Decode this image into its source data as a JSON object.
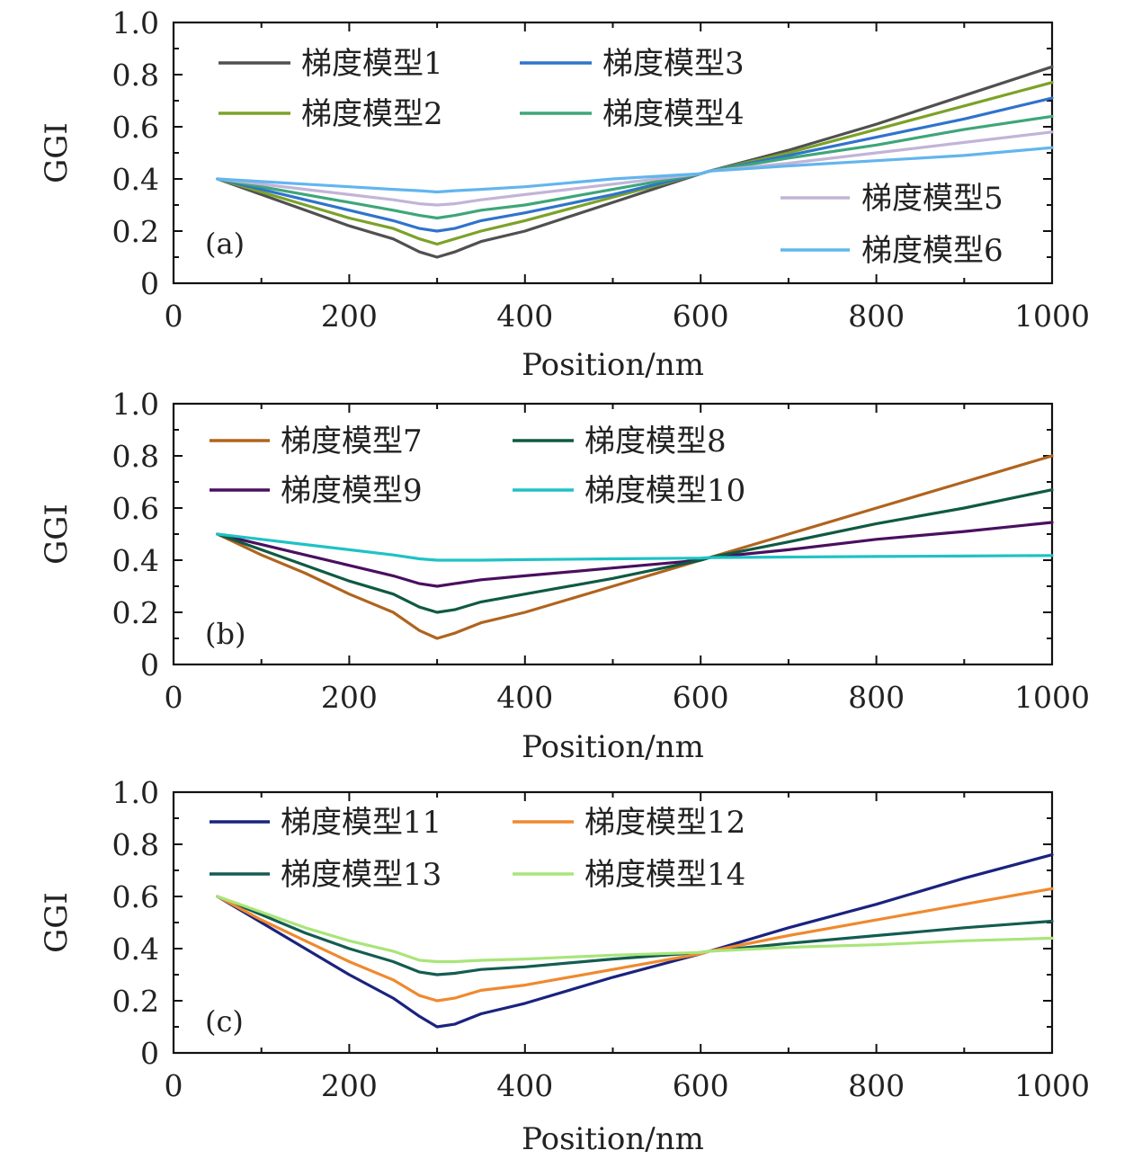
{
  "chart_data": [
    {
      "type": "line",
      "panel_label": "(a)",
      "xlabel": "Position/nm",
      "ylabel": "GGI",
      "xlim": [
        0,
        1000
      ],
      "ylim": [
        0,
        1.0
      ],
      "xticks": [
        0,
        200,
        400,
        600,
        800,
        1000
      ],
      "xtick_labels": [
        "0",
        "200",
        "400",
        "600",
        "800",
        "1000"
      ],
      "yticks": [
        0,
        0.2,
        0.4,
        0.6,
        0.8,
        1.0
      ],
      "ytick_labels": [
        "0",
        "0.2",
        "0.4",
        "0.6",
        "0.8",
        "1.0"
      ],
      "series": [
        {
          "name": "梯度模型1",
          "color": "#505050",
          "legend": "col1",
          "x": [
            50,
            100,
            150,
            200,
            250,
            280,
            300,
            320,
            350,
            400,
            500,
            600,
            610,
            700,
            800,
            900,
            1000
          ],
          "y": [
            0.4,
            0.34,
            0.28,
            0.22,
            0.17,
            0.12,
            0.1,
            0.12,
            0.16,
            0.2,
            0.31,
            0.42,
            0.43,
            0.51,
            0.61,
            0.72,
            0.83
          ]
        },
        {
          "name": "梯度模型2",
          "color": "#7ca228",
          "legend": "col1",
          "x": [
            50,
            100,
            150,
            200,
            250,
            280,
            300,
            320,
            350,
            400,
            500,
            600,
            610,
            700,
            800,
            900,
            1000
          ],
          "y": [
            0.4,
            0.35,
            0.3,
            0.25,
            0.21,
            0.17,
            0.15,
            0.17,
            0.2,
            0.24,
            0.33,
            0.42,
            0.43,
            0.5,
            0.59,
            0.68,
            0.77
          ]
        },
        {
          "name": "梯度模型3",
          "color": "#2f73cc",
          "legend": "col2",
          "x": [
            50,
            100,
            150,
            200,
            250,
            280,
            300,
            320,
            350,
            400,
            500,
            600,
            610,
            700,
            800,
            900,
            1000
          ],
          "y": [
            0.4,
            0.36,
            0.32,
            0.28,
            0.24,
            0.21,
            0.2,
            0.21,
            0.24,
            0.27,
            0.34,
            0.42,
            0.43,
            0.49,
            0.56,
            0.63,
            0.71
          ]
        },
        {
          "name": "梯度模型4",
          "color": "#3ea679",
          "legend": "col2",
          "x": [
            50,
            100,
            150,
            200,
            250,
            280,
            300,
            320,
            350,
            400,
            500,
            600,
            610,
            700,
            800,
            900,
            1000
          ],
          "y": [
            0.4,
            0.37,
            0.34,
            0.31,
            0.28,
            0.26,
            0.25,
            0.26,
            0.28,
            0.3,
            0.36,
            0.42,
            0.43,
            0.48,
            0.53,
            0.59,
            0.64
          ]
        },
        {
          "name": "梯度模型5",
          "color": "#c2b4d8",
          "legend": "bottom-right",
          "x": [
            50,
            100,
            150,
            200,
            250,
            280,
            300,
            320,
            350,
            400,
            500,
            600,
            610,
            700,
            800,
            900,
            1000
          ],
          "y": [
            0.4,
            0.38,
            0.36,
            0.34,
            0.32,
            0.305,
            0.3,
            0.305,
            0.32,
            0.34,
            0.38,
            0.42,
            0.43,
            0.46,
            0.5,
            0.54,
            0.58
          ]
        },
        {
          "name": "梯度模型6",
          "color": "#62b5ee",
          "legend": "bottom-right",
          "x": [
            50,
            100,
            150,
            200,
            250,
            280,
            300,
            320,
            350,
            400,
            500,
            600,
            610,
            700,
            800,
            900,
            1000
          ],
          "y": [
            0.4,
            0.39,
            0.38,
            0.37,
            0.36,
            0.355,
            0.35,
            0.355,
            0.36,
            0.37,
            0.4,
            0.42,
            0.43,
            0.45,
            0.47,
            0.49,
            0.52
          ]
        }
      ]
    },
    {
      "type": "line",
      "panel_label": "(b)",
      "xlabel": "Position/nm",
      "ylabel": "GGI",
      "xlim": [
        0,
        1000
      ],
      "ylim": [
        0,
        1.0
      ],
      "xticks": [
        0,
        200,
        400,
        600,
        800,
        1000
      ],
      "xtick_labels": [
        "0",
        "200",
        "400",
        "600",
        "800",
        "1000"
      ],
      "yticks": [
        0,
        0.2,
        0.4,
        0.6,
        0.8,
        1.0
      ],
      "ytick_labels": [
        "0",
        "0.2",
        "0.4",
        "0.6",
        "0.8",
        "1.0"
      ],
      "series": [
        {
          "name": "梯度模型7",
          "color": "#b0641e",
          "legend": "col1",
          "x": [
            50,
            100,
            150,
            200,
            250,
            280,
            300,
            320,
            350,
            400,
            500,
            600,
            610,
            700,
            800,
            900,
            1000
          ],
          "y": [
            0.5,
            0.42,
            0.35,
            0.27,
            0.2,
            0.13,
            0.1,
            0.12,
            0.16,
            0.2,
            0.3,
            0.4,
            0.41,
            0.5,
            0.6,
            0.7,
            0.8
          ]
        },
        {
          "name": "梯度模型9",
          "color": "#4a0f60",
          "legend": "col1",
          "x": [
            50,
            100,
            150,
            200,
            250,
            280,
            300,
            320,
            350,
            400,
            500,
            600,
            610,
            700,
            800,
            900,
            1000
          ],
          "y": [
            0.5,
            0.46,
            0.42,
            0.38,
            0.34,
            0.31,
            0.3,
            0.31,
            0.325,
            0.34,
            0.37,
            0.4,
            0.41,
            0.44,
            0.48,
            0.51,
            0.545
          ]
        },
        {
          "name": "梯度模型8",
          "color": "#0f5a42",
          "legend": "col2",
          "x": [
            50,
            100,
            150,
            200,
            250,
            280,
            300,
            320,
            350,
            400,
            500,
            600,
            610,
            700,
            800,
            900,
            1000
          ],
          "y": [
            0.5,
            0.44,
            0.38,
            0.32,
            0.27,
            0.22,
            0.2,
            0.21,
            0.24,
            0.27,
            0.33,
            0.4,
            0.41,
            0.47,
            0.54,
            0.6,
            0.67
          ]
        },
        {
          "name": "梯度模型10",
          "color": "#1fc2c4",
          "legend": "col2",
          "x": [
            50,
            100,
            150,
            200,
            250,
            280,
            300,
            320,
            350,
            400,
            500,
            600,
            610,
            700,
            800,
            900,
            1000
          ],
          "y": [
            0.5,
            0.48,
            0.46,
            0.44,
            0.42,
            0.405,
            0.4,
            0.4,
            0.4,
            0.402,
            0.405,
            0.408,
            0.41,
            0.412,
            0.414,
            0.416,
            0.418
          ]
        }
      ]
    },
    {
      "type": "line",
      "panel_label": "(c)",
      "xlabel": "Position/nm",
      "ylabel": "GGI",
      "xlim": [
        0,
        1000
      ],
      "ylim": [
        0,
        1.0
      ],
      "xticks": [
        0,
        200,
        400,
        600,
        800,
        1000
      ],
      "xtick_labels": [
        "0",
        "200",
        "400",
        "600",
        "800",
        "1000"
      ],
      "yticks": [
        0,
        0.2,
        0.4,
        0.6,
        0.8,
        1.0
      ],
      "ytick_labels": [
        "0",
        "0.2",
        "0.4",
        "0.6",
        "0.8",
        "1.0"
      ],
      "series": [
        {
          "name": "梯度模型11",
          "color": "#1a237e",
          "legend": "col1",
          "x": [
            50,
            100,
            150,
            200,
            250,
            280,
            300,
            320,
            350,
            400,
            500,
            600,
            610,
            700,
            800,
            900,
            1000
          ],
          "y": [
            0.6,
            0.5,
            0.4,
            0.3,
            0.21,
            0.14,
            0.1,
            0.11,
            0.15,
            0.19,
            0.29,
            0.38,
            0.39,
            0.48,
            0.57,
            0.67,
            0.76
          ]
        },
        {
          "name": "梯度模型13",
          "color": "#145c50",
          "legend": "col1",
          "x": [
            50,
            100,
            150,
            200,
            250,
            280,
            300,
            320,
            350,
            400,
            500,
            600,
            610,
            700,
            800,
            900,
            1000
          ],
          "y": [
            0.6,
            0.53,
            0.46,
            0.4,
            0.35,
            0.31,
            0.3,
            0.305,
            0.32,
            0.33,
            0.36,
            0.385,
            0.39,
            0.42,
            0.45,
            0.48,
            0.505
          ]
        },
        {
          "name": "梯度模型12",
          "color": "#f0892e",
          "legend": "col2",
          "x": [
            50,
            100,
            150,
            200,
            250,
            280,
            300,
            320,
            350,
            400,
            500,
            600,
            610,
            700,
            800,
            900,
            1000
          ],
          "y": [
            0.6,
            0.51,
            0.43,
            0.35,
            0.28,
            0.22,
            0.2,
            0.21,
            0.24,
            0.26,
            0.32,
            0.38,
            0.39,
            0.45,
            0.51,
            0.57,
            0.63
          ]
        },
        {
          "name": "梯度模型14",
          "color": "#a9e57a",
          "legend": "col2",
          "x": [
            50,
            100,
            150,
            200,
            250,
            280,
            300,
            320,
            350,
            400,
            500,
            600,
            610,
            700,
            800,
            900,
            1000
          ],
          "y": [
            0.6,
            0.54,
            0.48,
            0.43,
            0.39,
            0.355,
            0.35,
            0.35,
            0.355,
            0.36,
            0.375,
            0.385,
            0.39,
            0.405,
            0.415,
            0.43,
            0.44
          ]
        }
      ]
    }
  ]
}
